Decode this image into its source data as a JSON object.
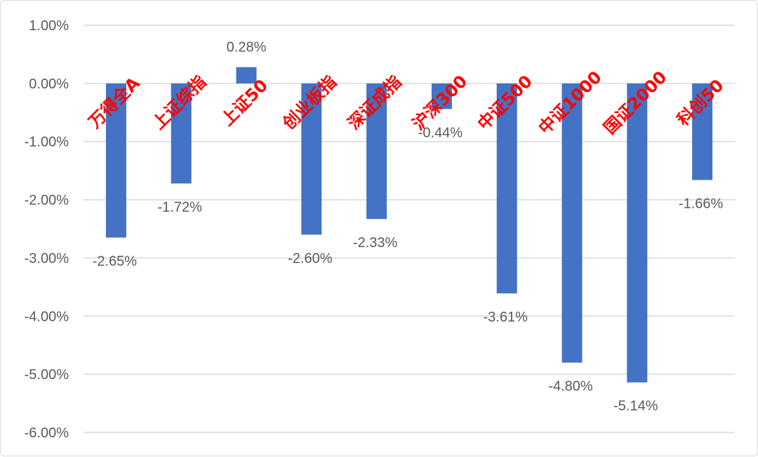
{
  "chart_data": {
    "type": "bar",
    "title": "",
    "xlabel": "",
    "ylabel": "",
    "ylim": [
      -6,
      1
    ],
    "yticks": [
      1,
      0,
      -1,
      -2,
      -3,
      -4,
      -5,
      -6
    ],
    "ytick_labels": [
      "1.00%",
      "0.00%",
      "-1.00%",
      "-2.00%",
      "-3.00%",
      "-4.00%",
      "-5.00%",
      "-6.00%"
    ],
    "grid": true,
    "legend": "none",
    "bar_color": "#4472C4",
    "category_label_color": "#FF0000",
    "categories": [
      "万得全A",
      "上证综指",
      "上证50",
      "创业板指",
      "深证成指",
      "沪深300",
      "中证500",
      "中证1000",
      "国证2000",
      "科创50"
    ],
    "values": [
      -2.65,
      -1.72,
      0.28,
      -2.6,
      -2.33,
      -0.44,
      -3.61,
      -4.8,
      -5.14,
      -1.66
    ],
    "data_labels": [
      "-2.65%",
      "-1.72%",
      "0.28%",
      "-2.60%",
      "-2.33%",
      "-0.44%",
      "-3.61%",
      "-4.80%",
      "-5.14%",
      "-1.66%"
    ]
  }
}
